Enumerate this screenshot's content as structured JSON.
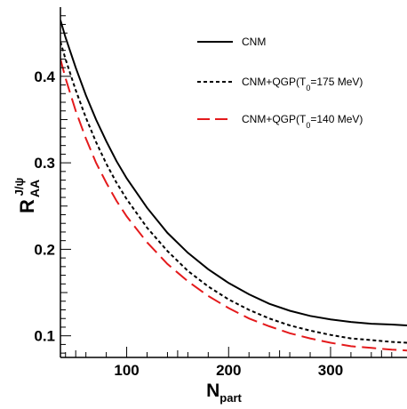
{
  "chart_data": {
    "type": "line",
    "xlabel": {
      "main": "N",
      "sub": "part"
    },
    "ylabel": {
      "main": "R",
      "sub": "AA",
      "sup": "J/ψ"
    },
    "xlim": [
      35,
      375
    ],
    "ylim": [
      0.075,
      0.48
    ],
    "x_ticks": [
      100,
      200,
      300
    ],
    "x_tick_labels": [
      "100",
      "200",
      "300"
    ],
    "y_ticks": [
      0.1,
      0.2,
      0.3,
      0.4
    ],
    "y_tick_labels": [
      "0.1",
      "0.2",
      "0.3",
      "0.4"
    ],
    "grid": false,
    "legend_position": "top-right",
    "series": [
      {
        "name": "CNM",
        "legend": {
          "before": "CNM",
          "sub": "",
          "after": ""
        },
        "color": "#000000",
        "dash": "solid",
        "x": [
          35,
          40,
          50,
          60,
          70,
          80,
          90,
          100,
          120,
          140,
          160,
          180,
          200,
          220,
          240,
          260,
          280,
          300,
          320,
          340,
          360,
          375
        ],
        "y": [
          0.465,
          0.445,
          0.41,
          0.378,
          0.35,
          0.325,
          0.302,
          0.282,
          0.248,
          0.219,
          0.196,
          0.177,
          0.161,
          0.148,
          0.137,
          0.129,
          0.123,
          0.119,
          0.116,
          0.114,
          0.113,
          0.112
        ]
      },
      {
        "name": "CNM+QGP(T0=175 MeV)",
        "legend": {
          "before": "CNM+QGP(T",
          "sub": "0",
          "after": "=175 MeV)"
        },
        "color": "#000000",
        "dash": "dotted",
        "x": [
          35,
          40,
          50,
          60,
          70,
          80,
          90,
          100,
          120,
          140,
          160,
          180,
          200,
          220,
          240,
          260,
          280,
          300,
          320,
          340,
          360,
          375
        ],
        "y": [
          0.44,
          0.42,
          0.384,
          0.352,
          0.324,
          0.299,
          0.277,
          0.258,
          0.225,
          0.198,
          0.175,
          0.157,
          0.142,
          0.13,
          0.12,
          0.112,
          0.106,
          0.101,
          0.097,
          0.095,
          0.093,
          0.092
        ]
      },
      {
        "name": "CNM+QGP(T0=140 MeV)",
        "legend": {
          "before": "CNM+QGP(T",
          "sub": "0",
          "after": "=140 MeV)"
        },
        "color": "#e41a1c",
        "dash": "dashed",
        "x": [
          35,
          40,
          50,
          60,
          70,
          80,
          90,
          100,
          120,
          140,
          160,
          180,
          200,
          220,
          240,
          260,
          280,
          300,
          320,
          340,
          360,
          375
        ],
        "y": [
          0.42,
          0.398,
          0.36,
          0.328,
          0.3,
          0.277,
          0.256,
          0.238,
          0.208,
          0.183,
          0.163,
          0.146,
          0.132,
          0.12,
          0.111,
          0.103,
          0.097,
          0.092,
          0.088,
          0.086,
          0.084,
          0.083
        ]
      }
    ]
  }
}
